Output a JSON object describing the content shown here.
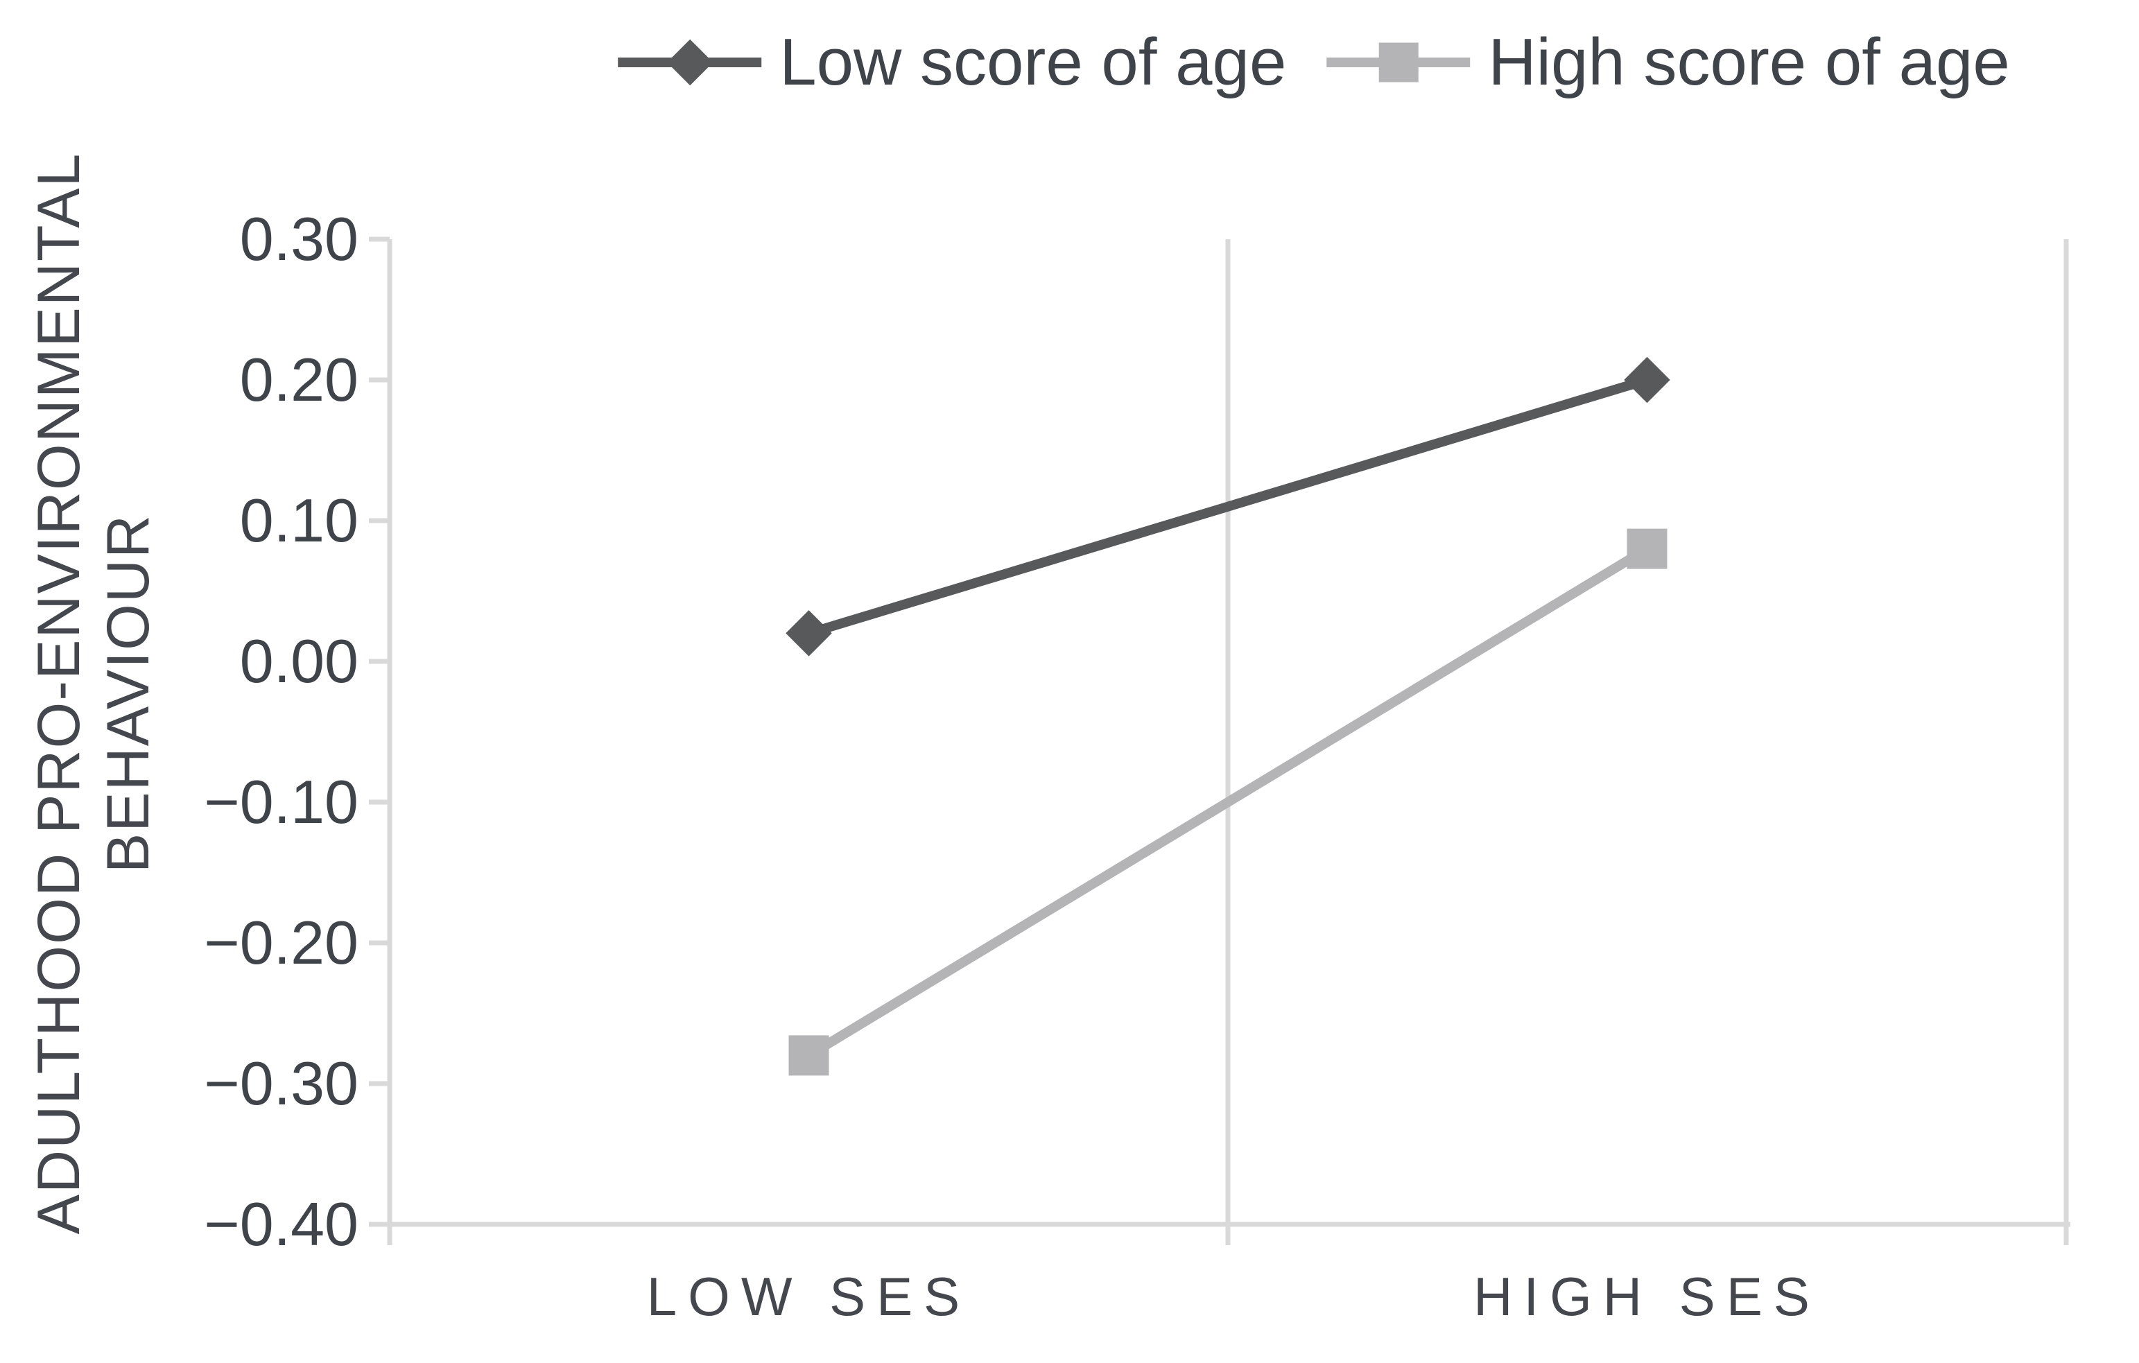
{
  "figure": {
    "background": "#ffffff",
    "text_color": "#3f434a",
    "grid_color": "#d9d9d9"
  },
  "legend": {
    "position": "top",
    "items": [
      {
        "label": "Low score of age",
        "marker": "diamond",
        "color": "#57595b"
      },
      {
        "label": "High score of age",
        "marker": "square",
        "color": "#b4b4b6"
      }
    ]
  },
  "y_axis": {
    "title_line1": "ADULTHOOD PRO-ENVIRONMENTAL",
    "title_line2": "BEHAVIOUR",
    "tick_labels": [
      "0.30",
      "0.20",
      "0.10",
      "0.00",
      "−0.10",
      "−0.20",
      "−0.30",
      "−0.40"
    ]
  },
  "x_axis": {
    "tick_labels": [
      "LOW SES",
      "HIGH SES"
    ]
  },
  "chart_data": {
    "type": "line",
    "categories": [
      "LOW SES",
      "HIGH SES"
    ],
    "series": [
      {
        "name": "Low score of age",
        "values": [
          0.02,
          0.2
        ],
        "color": "#57595b",
        "marker": "diamond"
      },
      {
        "name": "High score of age",
        "values": [
          -0.28,
          0.08
        ],
        "color": "#b4b4b6",
        "marker": "square"
      }
    ],
    "title": "",
    "xlabel": "",
    "ylabel": "ADULTHOOD PRO-ENVIRONMENTAL BEHAVIOUR",
    "ylim": [
      -0.4,
      0.3
    ],
    "ytick_step": 0.1,
    "grid": "vertical category boundaries only",
    "legend_position": "top center"
  }
}
